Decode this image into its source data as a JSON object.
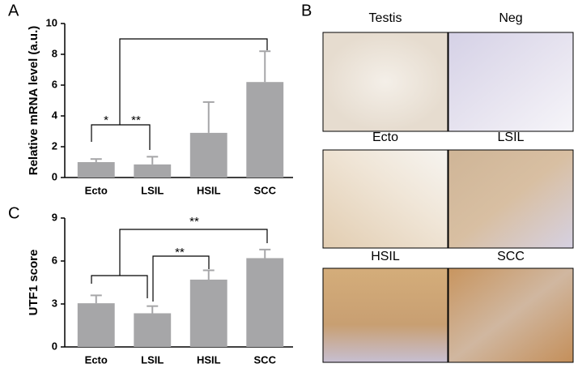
{
  "panel_labels": [
    "A",
    "B",
    "C"
  ],
  "chart_data": [
    {
      "type": "bar",
      "y_label": "Relative mRNA level (a.u.)",
      "categories": [
        "Ecto",
        "LSIL",
        "HSIL",
        "SCC"
      ],
      "values": [
        1.0,
        0.85,
        2.9,
        6.2
      ],
      "errors": [
        0.2,
        0.5,
        2.0,
        2.0
      ],
      "color": "#a6a6a8",
      "ylim": [
        0,
        10
      ],
      "yticks": [
        0,
        2,
        4,
        6,
        8,
        10
      ],
      "annotations": [
        "*",
        "**"
      ]
    },
    {
      "type": "bar",
      "y_label": "UTF1 score",
      "categories": [
        "Ecto",
        "LSIL",
        "HSIL",
        "SCC"
      ],
      "values": [
        3.05,
        2.35,
        4.7,
        6.2
      ],
      "errors": [
        0.55,
        0.5,
        0.65,
        0.6
      ],
      "color": "#a6a6a8",
      "ylim": [
        0,
        9
      ],
      "yticks": [
        0,
        3,
        6,
        9
      ],
      "annotations": [
        "**",
        "**"
      ]
    }
  ],
  "images": {
    "labels": [
      "Testis",
      "Neg",
      "Ecto",
      "LSIL",
      "HSIL",
      "SCC"
    ]
  }
}
